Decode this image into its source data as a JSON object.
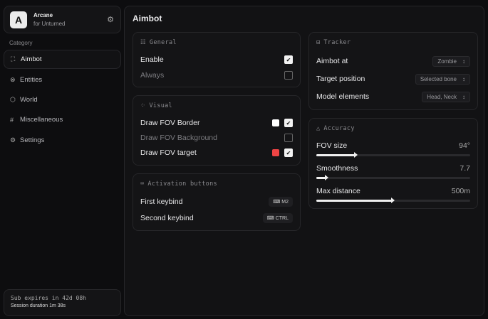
{
  "app": {
    "logo_letter": "A",
    "name": "Arcane",
    "subtitle": "for Unturned",
    "settings_icon": "gear-icon"
  },
  "sidebar": {
    "category_label": "Category",
    "items": [
      {
        "label": "Aimbot",
        "icon": "crosshair-icon",
        "active": true
      },
      {
        "label": "Entities",
        "icon": "scan-face-icon"
      },
      {
        "label": "World",
        "icon": "globe-icon"
      },
      {
        "label": "Miscellaneous",
        "icon": "grid-icon"
      },
      {
        "label": "Settings",
        "icon": "gear-icon"
      }
    ]
  },
  "footer": {
    "subscription": "Sub expires in 42d 08h",
    "session": "Session duration 1m 38s"
  },
  "page": {
    "title": "Aimbot"
  },
  "general": {
    "title": "General",
    "rows": [
      {
        "label": "Enable",
        "checked": true
      },
      {
        "label": "Always",
        "checked": false
      }
    ]
  },
  "visual": {
    "title": "Visual",
    "rows": [
      {
        "label": "Draw FOV Border",
        "checked": true,
        "color": "#ffffff"
      },
      {
        "label": "Draw FOV Background",
        "checked": false
      },
      {
        "label": "Draw FOV target",
        "checked": true,
        "color": "#ef4444"
      }
    ]
  },
  "activation": {
    "title": "Activation buttons",
    "rows": [
      {
        "label": "First keybind",
        "key": "M2"
      },
      {
        "label": "Second keybind",
        "key": "CTRL"
      }
    ]
  },
  "tracker": {
    "title": "Tracker",
    "rows": [
      {
        "label": "Aimbot at",
        "value": "Zombie"
      },
      {
        "label": "Target position",
        "value": "Selected bone"
      },
      {
        "label": "Model elements",
        "value": "Head, Neck"
      }
    ]
  },
  "accuracy": {
    "title": "Accuracy",
    "sliders": [
      {
        "label": "FOV size",
        "value": "94°",
        "fraction": 0.26
      },
      {
        "label": "Smoothness",
        "value": "7.7",
        "fraction": 0.07
      },
      {
        "label": "Max distance",
        "value": "500m",
        "fraction": 0.5
      }
    ]
  }
}
